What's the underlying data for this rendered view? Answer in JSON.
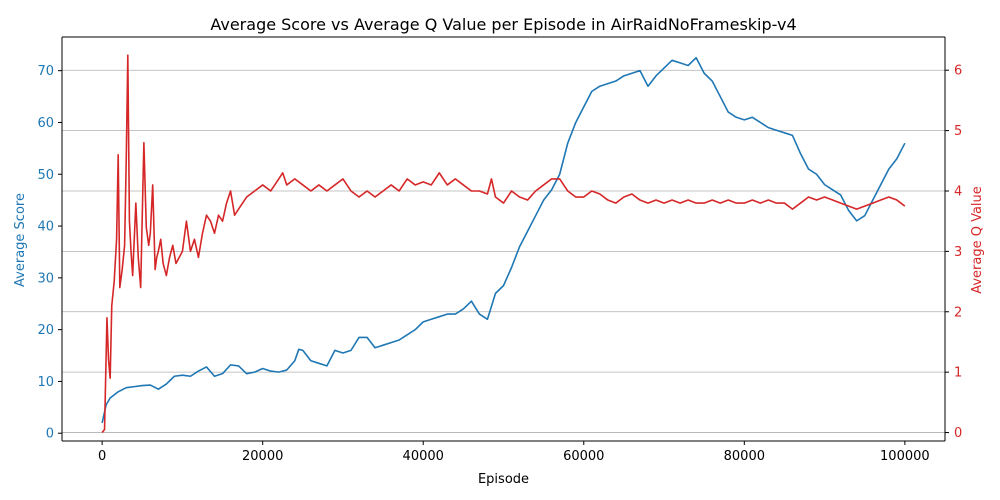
{
  "chart_data": {
    "type": "line",
    "title": "Average Score vs Average Q Value per Episode in AirRaidNoFrameskip-v4",
    "xlabel": "Episode",
    "ylabel_left": "Average Score",
    "ylabel_right": "Average Q Value",
    "xlim": [
      -5000,
      105000
    ],
    "ylim_left": [
      -1.5,
      76.5
    ],
    "ylim_right": [
      -0.14,
      6.55
    ],
    "x_ticks": [
      0,
      20000,
      40000,
      60000,
      80000,
      100000
    ],
    "x_tick_labels": [
      "0",
      "20000",
      "40000",
      "60000",
      "80000",
      "100000"
    ],
    "y_left_ticks": [
      0,
      10,
      20,
      30,
      40,
      50,
      60,
      70
    ],
    "y_left_tick_labels": [
      "0",
      "10",
      "20",
      "30",
      "40",
      "50",
      "60",
      "70"
    ],
    "y_right_ticks": [
      0,
      1,
      2,
      3,
      4,
      5,
      6
    ],
    "y_right_tick_labels": [
      "0",
      "1",
      "2",
      "3",
      "4",
      "5",
      "6"
    ],
    "grid": "horizontal lines at right-axis ticks",
    "colors": {
      "score": "#1f77b4",
      "q": "#d62728",
      "axis": "#000000",
      "grid": "#b0b0b0"
    },
    "series": [
      {
        "name": "Average Score",
        "axis": "left",
        "x": [
          0,
          500,
          1000,
          2000,
          3000,
          4000,
          5000,
          6000,
          7000,
          8000,
          9000,
          10000,
          11000,
          12000,
          13000,
          14000,
          15000,
          16000,
          17000,
          18000,
          19000,
          20000,
          21000,
          22000,
          23000,
          24000,
          24500,
          25000,
          26000,
          27000,
          28000,
          29000,
          30000,
          31000,
          32000,
          33000,
          34000,
          35000,
          36000,
          37000,
          38000,
          39000,
          40000,
          41000,
          42000,
          43000,
          44000,
          45000,
          46000,
          47000,
          48000,
          49000,
          50000,
          51000,
          52000,
          53000,
          54000,
          55000,
          56000,
          57000,
          58000,
          59000,
          60000,
          61000,
          62000,
          63000,
          64000,
          65000,
          66000,
          67000,
          68000,
          69000,
          70000,
          71000,
          72000,
          73000,
          74000,
          75000,
          76000,
          77000,
          78000,
          79000,
          80000,
          81000,
          82000,
          83000,
          84000,
          85000,
          86000,
          87000,
          88000,
          89000,
          90000,
          91000,
          92000,
          93000,
          94000,
          95000,
          96000,
          97000,
          98000,
          99000,
          100000
        ],
        "values": [
          2,
          5.5,
          6.8,
          8,
          8.8,
          9,
          9.2,
          9.3,
          8.5,
          9.5,
          11,
          11.2,
          11,
          12,
          12.8,
          11,
          11.5,
          13.2,
          13,
          11.5,
          11.8,
          12.5,
          12,
          11.8,
          12.2,
          14,
          16.2,
          16,
          14,
          13.5,
          13,
          16,
          15.5,
          16,
          18.5,
          18.5,
          16.5,
          17,
          17.5,
          18,
          19,
          20,
          21.5,
          22,
          22.5,
          23,
          23,
          24,
          25.5,
          23,
          22,
          27,
          28.5,
          32,
          36,
          39,
          42,
          45,
          47,
          50,
          56,
          60,
          63,
          66,
          67,
          67.5,
          68,
          69,
          69.5,
          70,
          67,
          69,
          70.5,
          72,
          71.5,
          71,
          72.5,
          69.5,
          68,
          65,
          62,
          61,
          60.5,
          61,
          60,
          59,
          58.5,
          58,
          57.5,
          54,
          51,
          50,
          48,
          47,
          46,
          43,
          41,
          42,
          45,
          48,
          51,
          53,
          56
        ]
      },
      {
        "name": "Average Q Value",
        "axis": "right",
        "x": [
          0,
          300,
          600,
          800,
          1000,
          1200,
          1500,
          1800,
          2000,
          2200,
          2500,
          2800,
          3000,
          3200,
          3400,
          3600,
          3800,
          4000,
          4200,
          4500,
          4800,
          5000,
          5200,
          5500,
          5800,
          6000,
          6300,
          6600,
          6800,
          7000,
          7300,
          7600,
          8000,
          8400,
          8800,
          9200,
          9600,
          10000,
          10500,
          11000,
          11500,
          12000,
          12500,
          13000,
          13500,
          14000,
          14500,
          15000,
          15500,
          16000,
          16500,
          17000,
          17500,
          18000,
          19000,
          20000,
          21000,
          22000,
          22500,
          23000,
          24000,
          25000,
          26000,
          27000,
          28000,
          29000,
          30000,
          31000,
          32000,
          33000,
          34000,
          35000,
          36000,
          37000,
          38000,
          39000,
          40000,
          41000,
          42000,
          43000,
          44000,
          45000,
          46000,
          47000,
          48000,
          48500,
          49000,
          50000,
          51000,
          52000,
          53000,
          54000,
          55000,
          56000,
          57000,
          58000,
          59000,
          60000,
          61000,
          62000,
          63000,
          64000,
          65000,
          66000,
          67000,
          68000,
          69000,
          70000,
          71000,
          72000,
          73000,
          74000,
          75000,
          76000,
          77000,
          78000,
          79000,
          80000,
          81000,
          82000,
          83000,
          84000,
          85000,
          86000,
          87000,
          88000,
          89000,
          90000,
          91000,
          92000,
          93000,
          94000,
          95000,
          96000,
          97000,
          98000,
          99000,
          100000
        ],
        "values": [
          0,
          0.05,
          1.9,
          1.2,
          0.9,
          2.1,
          2.5,
          3.2,
          4.6,
          2.4,
          2.7,
          3.1,
          4.5,
          6.25,
          3.5,
          3.0,
          2.6,
          3.2,
          3.8,
          2.9,
          2.4,
          3.6,
          4.8,
          3.4,
          3.1,
          3.3,
          4.1,
          2.7,
          2.9,
          3.0,
          3.2,
          2.8,
          2.6,
          2.9,
          3.1,
          2.8,
          2.9,
          3.0,
          3.5,
          3.0,
          3.2,
          2.9,
          3.3,
          3.6,
          3.5,
          3.3,
          3.6,
          3.5,
          3.8,
          4.0,
          3.6,
          3.7,
          3.8,
          3.9,
          4.0,
          4.1,
          4.0,
          4.2,
          4.3,
          4.1,
          4.2,
          4.1,
          4.0,
          4.1,
          4.0,
          4.1,
          4.2,
          4.0,
          3.9,
          4.0,
          3.9,
          4.0,
          4.1,
          4.0,
          4.2,
          4.1,
          4.15,
          4.1,
          4.3,
          4.1,
          4.2,
          4.1,
          4.0,
          4.0,
          3.95,
          4.2,
          3.9,
          3.8,
          4.0,
          3.9,
          3.85,
          4.0,
          4.1,
          4.2,
          4.2,
          4.0,
          3.9,
          3.9,
          4.0,
          3.95,
          3.85,
          3.8,
          3.9,
          3.95,
          3.85,
          3.8,
          3.85,
          3.8,
          3.85,
          3.8,
          3.85,
          3.8,
          3.8,
          3.85,
          3.8,
          3.85,
          3.8,
          3.8,
          3.85,
          3.8,
          3.85,
          3.8,
          3.8,
          3.7,
          3.8,
          3.9,
          3.85,
          3.9,
          3.85,
          3.8,
          3.75,
          3.7,
          3.75,
          3.8,
          3.85,
          3.9,
          3.85,
          3.75
        ]
      }
    ],
    "legend": "none"
  }
}
